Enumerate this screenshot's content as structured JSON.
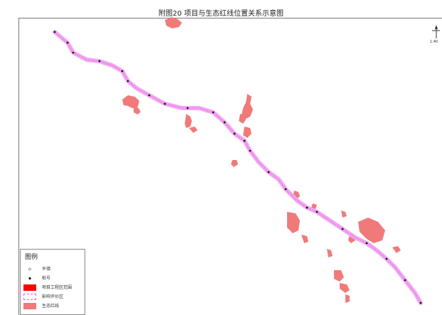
{
  "title": "附图20  项目与生态红线位置关系示意图",
  "scale_text": "1:40",
  "legend": {
    "title": "图例",
    "items": [
      {
        "key": "township",
        "label": "乡镇"
      },
      {
        "key": "stake",
        "label": "桩号"
      },
      {
        "key": "project_area",
        "label": "项目工程区范围"
      },
      {
        "key": "impact_area",
        "label": "影响评价区"
      },
      {
        "key": "red_line",
        "label": "生态红线"
      }
    ]
  },
  "colors": {
    "red_line": "#f07a7a",
    "project": "#ff0000",
    "impact": "#e060e8",
    "route": "#f2a8f0",
    "stake": "#111111"
  }
}
